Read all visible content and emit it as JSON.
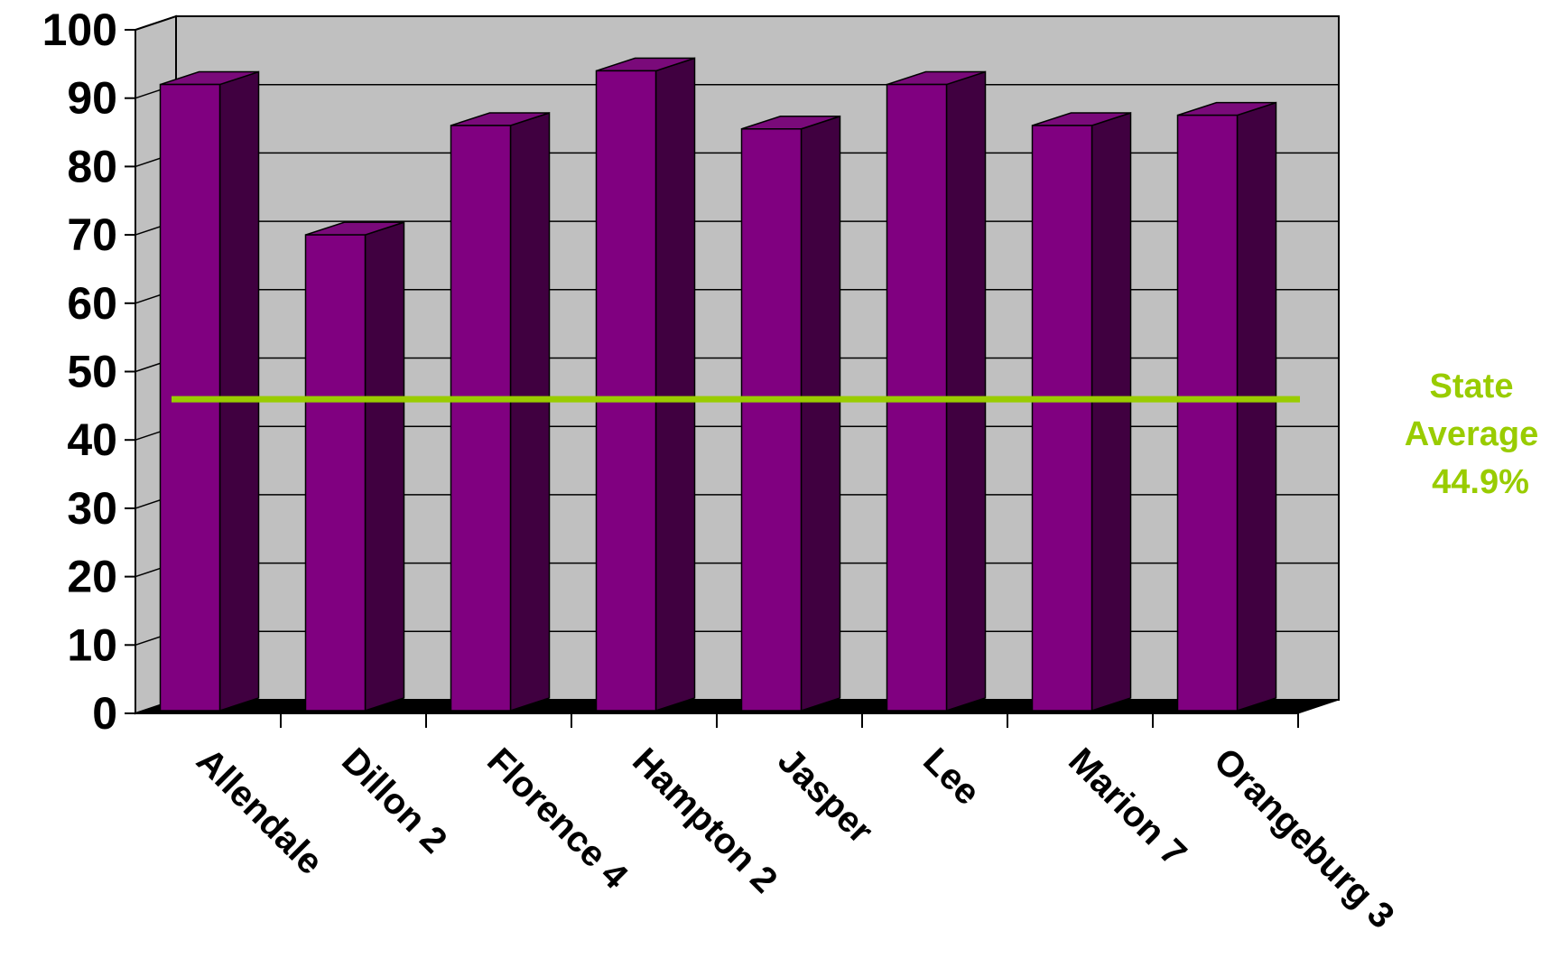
{
  "chart_data": {
    "type": "bar",
    "title": "",
    "xlabel": "",
    "ylabel": "",
    "categories": [
      "Allendale",
      "Dillon 2",
      "Florence 4",
      "Hampton 2",
      "Jasper",
      "Lee",
      "Marion 7",
      "Orangeburg 3"
    ],
    "values": [
      92,
      70,
      86,
      94,
      85.5,
      92,
      86,
      87.5
    ],
    "ylim": [
      0,
      100
    ],
    "yticks": [
      "0",
      "10",
      "20",
      "30",
      "40",
      "50",
      "60",
      "70",
      "80",
      "90",
      "100"
    ],
    "grid": true,
    "style": "3d-bar",
    "colors": {
      "bar_front": "#800080",
      "bar_side": "#400040",
      "bar_top": "#7a0a7a",
      "plot_back": "#c0c0c0",
      "floor": "#000000",
      "average_line": "#99cc00"
    },
    "reference_line": {
      "value": 44.9,
      "label_lines": [
        "State",
        "Average",
        "44.9%"
      ]
    }
  }
}
